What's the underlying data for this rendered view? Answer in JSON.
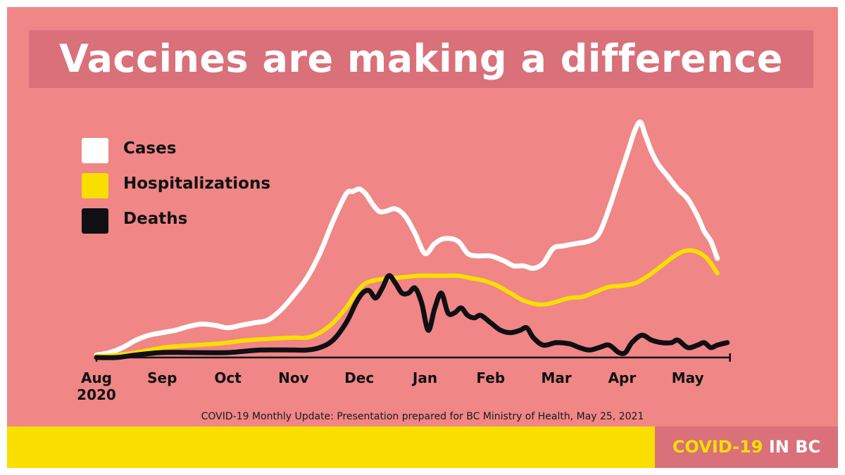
{
  "title": "Vaccines are making a difference",
  "footnote": "COVID-19 Monthly Update: Presentation prepared for BC Ministry of Health, May 25, 2021",
  "brand": {
    "part1": "COVID-19",
    "part2": "IN BC"
  },
  "colors": {
    "background": "#f08686",
    "title_box": "#d9707a",
    "cases": "#ffffff",
    "hospitalizations": "#f9df00",
    "deaths": "#0f0f14",
    "brand_bar": "#f9df00",
    "brand_box": "#d9707a"
  },
  "legend": [
    {
      "label": "Cases",
      "color": "#ffffff"
    },
    {
      "label": "Hospitalizations",
      "color": "#f9df00"
    },
    {
      "label": "Deaths",
      "color": "#0f0f14"
    }
  ],
  "chart_data": {
    "type": "line",
    "title": "Vaccines are making a difference",
    "xlabel": "",
    "ylabel": "",
    "x_range": [
      0,
      9.6
    ],
    "ylim": [
      0,
      100
    ],
    "y_scale": "relative (no y-axis shown)",
    "grid": false,
    "legend_position": "top-left",
    "x_ticks": [
      {
        "x": 0,
        "label": "Aug",
        "sublabel": "2020"
      },
      {
        "x": 1,
        "label": "Sep"
      },
      {
        "x": 2,
        "label": "Oct"
      },
      {
        "x": 3,
        "label": "Nov"
      },
      {
        "x": 4,
        "label": "Dec"
      },
      {
        "x": 5,
        "label": "Jan"
      },
      {
        "x": 6,
        "label": "Feb"
      },
      {
        "x": 7,
        "label": "Mar"
      },
      {
        "x": 8,
        "label": "Apr"
      },
      {
        "x": 9,
        "label": "May"
      }
    ],
    "series": [
      {
        "name": "Cases",
        "color": "#ffffff",
        "points": [
          [
            0,
            1
          ],
          [
            0.2,
            2
          ],
          [
            0.4,
            4
          ],
          [
            0.6,
            7
          ],
          [
            0.8,
            9
          ],
          [
            1.0,
            10
          ],
          [
            1.2,
            11
          ],
          [
            1.4,
            12.5
          ],
          [
            1.6,
            13.5
          ],
          [
            1.8,
            13
          ],
          [
            2.0,
            12
          ],
          [
            2.2,
            13
          ],
          [
            2.4,
            14
          ],
          [
            2.6,
            15
          ],
          [
            2.8,
            19
          ],
          [
            3.0,
            25
          ],
          [
            3.2,
            32
          ],
          [
            3.4,
            42
          ],
          [
            3.6,
            55
          ],
          [
            3.8,
            66
          ],
          [
            3.9,
            67
          ],
          [
            4.0,
            68
          ],
          [
            4.1,
            66
          ],
          [
            4.2,
            62
          ],
          [
            4.3,
            59
          ],
          [
            4.4,
            59
          ],
          [
            4.55,
            60
          ],
          [
            4.7,
            57
          ],
          [
            4.85,
            50
          ],
          [
            5.0,
            42
          ],
          [
            5.15,
            46
          ],
          [
            5.3,
            48
          ],
          [
            5.5,
            47
          ],
          [
            5.65,
            42
          ],
          [
            5.8,
            41
          ],
          [
            6.0,
            41
          ],
          [
            6.2,
            39
          ],
          [
            6.35,
            37
          ],
          [
            6.5,
            37
          ],
          [
            6.65,
            36
          ],
          [
            6.8,
            38
          ],
          [
            6.95,
            44
          ],
          [
            7.1,
            45
          ],
          [
            7.3,
            46
          ],
          [
            7.5,
            47
          ],
          [
            7.65,
            50
          ],
          [
            7.8,
            60
          ],
          [
            7.95,
            72
          ],
          [
            8.1,
            84
          ],
          [
            8.2,
            92
          ],
          [
            8.28,
            95
          ],
          [
            8.35,
            90
          ],
          [
            8.45,
            83
          ],
          [
            8.55,
            78
          ],
          [
            8.7,
            73
          ],
          [
            8.85,
            68
          ],
          [
            9.0,
            64
          ],
          [
            9.15,
            57
          ],
          [
            9.25,
            51
          ],
          [
            9.35,
            47
          ],
          [
            9.45,
            40
          ]
        ]
      },
      {
        "name": "Hospitalizations",
        "color": "#f9df00",
        "points": [
          [
            0,
            0.5
          ],
          [
            0.3,
            1
          ],
          [
            0.6,
            2
          ],
          [
            0.8,
            3
          ],
          [
            1.0,
            4
          ],
          [
            1.2,
            4.5
          ],
          [
            1.5,
            5
          ],
          [
            1.8,
            5.5
          ],
          [
            2.0,
            6
          ],
          [
            2.3,
            7
          ],
          [
            2.6,
            7.5
          ],
          [
            3.0,
            8
          ],
          [
            3.2,
            8
          ],
          [
            3.4,
            10
          ],
          [
            3.6,
            14
          ],
          [
            3.8,
            20
          ],
          [
            3.95,
            26
          ],
          [
            4.1,
            30
          ],
          [
            4.3,
            31.5
          ],
          [
            4.5,
            32
          ],
          [
            4.7,
            32.5
          ],
          [
            4.9,
            33
          ],
          [
            5.1,
            33
          ],
          [
            5.3,
            33
          ],
          [
            5.5,
            33
          ],
          [
            5.7,
            32
          ],
          [
            5.9,
            31
          ],
          [
            6.1,
            29
          ],
          [
            6.3,
            26
          ],
          [
            6.5,
            23
          ],
          [
            6.7,
            21.5
          ],
          [
            6.85,
            21.5
          ],
          [
            7.0,
            22.5
          ],
          [
            7.2,
            24
          ],
          [
            7.4,
            24.5
          ],
          [
            7.6,
            26.5
          ],
          [
            7.8,
            28.5
          ],
          [
            8.0,
            29
          ],
          [
            8.2,
            30
          ],
          [
            8.4,
            33
          ],
          [
            8.6,
            37
          ],
          [
            8.8,
            41
          ],
          [
            8.95,
            43
          ],
          [
            9.1,
            43
          ],
          [
            9.25,
            41
          ],
          [
            9.35,
            38
          ],
          [
            9.45,
            34
          ]
        ]
      },
      {
        "name": "Deaths",
        "color": "#0f0f14",
        "points": [
          [
            0,
            0
          ],
          [
            0.3,
            0
          ],
          [
            0.6,
            1
          ],
          [
            1.0,
            2
          ],
          [
            1.5,
            2
          ],
          [
            2.0,
            2
          ],
          [
            2.5,
            3
          ],
          [
            3.0,
            3
          ],
          [
            3.2,
            3
          ],
          [
            3.4,
            4
          ],
          [
            3.6,
            7
          ],
          [
            3.8,
            14
          ],
          [
            3.95,
            22
          ],
          [
            4.05,
            26
          ],
          [
            4.15,
            27
          ],
          [
            4.25,
            24
          ],
          [
            4.35,
            28
          ],
          [
            4.45,
            33
          ],
          [
            4.55,
            30
          ],
          [
            4.65,
            26
          ],
          [
            4.75,
            26
          ],
          [
            4.85,
            28
          ],
          [
            4.95,
            22
          ],
          [
            5.05,
            11
          ],
          [
            5.15,
            20
          ],
          [
            5.25,
            26
          ],
          [
            5.35,
            18
          ],
          [
            5.45,
            18
          ],
          [
            5.55,
            20
          ],
          [
            5.65,
            17
          ],
          [
            5.75,
            16
          ],
          [
            5.85,
            17
          ],
          [
            6.0,
            14
          ],
          [
            6.15,
            11
          ],
          [
            6.3,
            10
          ],
          [
            6.45,
            11
          ],
          [
            6.55,
            12
          ],
          [
            6.65,
            8
          ],
          [
            6.8,
            5
          ],
          [
            7.0,
            6
          ],
          [
            7.2,
            5.5
          ],
          [
            7.35,
            4
          ],
          [
            7.5,
            3
          ],
          [
            7.65,
            4
          ],
          [
            7.8,
            5
          ],
          [
            7.95,
            2
          ],
          [
            8.05,
            2
          ],
          [
            8.15,
            6
          ],
          [
            8.3,
            9
          ],
          [
            8.45,
            7
          ],
          [
            8.6,
            6
          ],
          [
            8.75,
            6
          ],
          [
            8.85,
            7
          ],
          [
            9.0,
            4
          ],
          [
            9.15,
            5
          ],
          [
            9.25,
            6
          ],
          [
            9.35,
            4
          ],
          [
            9.45,
            5
          ],
          [
            9.6,
            6
          ]
        ]
      }
    ]
  }
}
